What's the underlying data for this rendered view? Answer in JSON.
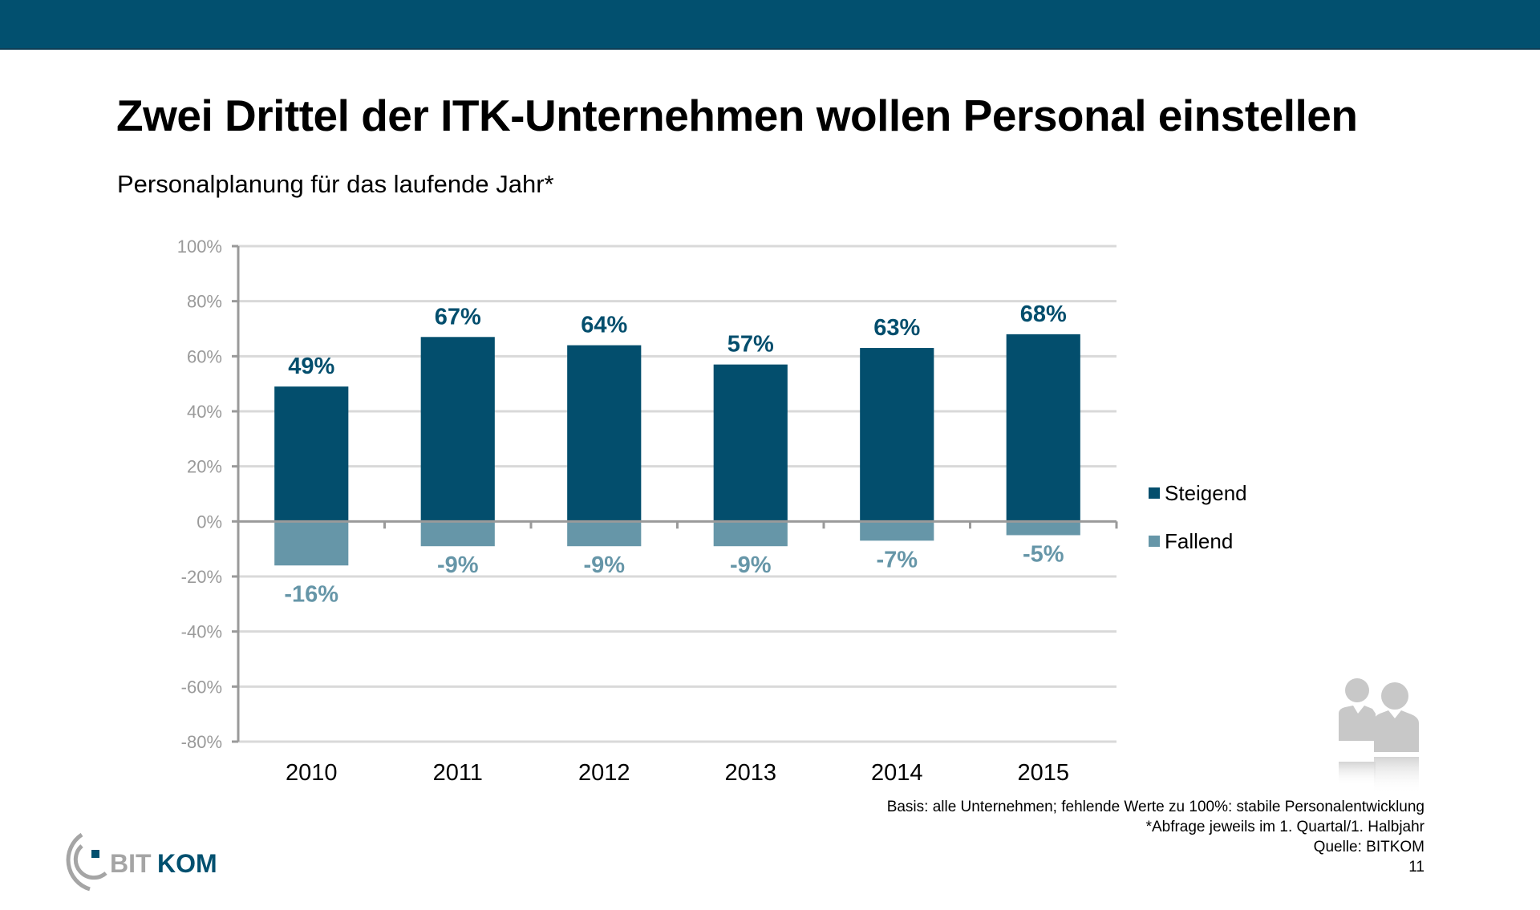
{
  "header": {
    "title": "Zwei Drittel der ITK-Unternehmen wollen Personal einstellen",
    "subtitle": "Personalplanung für das laufende Jahr*"
  },
  "colors": {
    "brand": "#02506f",
    "steigend": "#034e6d",
    "fallend": "#6696a8",
    "grid": "#d9d9d9",
    "axis": "#9a9a9a"
  },
  "chart_data": {
    "type": "bar",
    "title": "Personalplanung für das laufende Jahr*",
    "xlabel": "",
    "ylabel": "",
    "categories": [
      "2010",
      "2011",
      "2012",
      "2013",
      "2014",
      "2015"
    ],
    "series": [
      {
        "name": "Steigend",
        "values": [
          49,
          67,
          64,
          57,
          63,
          68
        ],
        "labels": [
          "49%",
          "67%",
          "64%",
          "57%",
          "63%",
          "68%"
        ]
      },
      {
        "name": "Fallend",
        "values": [
          -16,
          -9,
          -9,
          -9,
          -7,
          -5
        ],
        "labels": [
          "-16%",
          "-9%",
          "-9%",
          "-9%",
          "-7%",
          "-5%"
        ]
      }
    ],
    "ylim": [
      -80,
      100
    ],
    "yticks": [
      100,
      80,
      60,
      40,
      20,
      0,
      -20,
      -40,
      -60,
      -80
    ],
    "ytick_labels": [
      "100%",
      "80%",
      "60%",
      "40%",
      "20%",
      "0%",
      "-20%",
      "-40%",
      "-60%",
      "-80%"
    ],
    "grid": true,
    "legend_position": "right"
  },
  "legend": {
    "items": [
      {
        "label": "Steigend"
      },
      {
        "label": "Fallend"
      }
    ]
  },
  "footnotes": {
    "basis": "Basis: alle Unternehmen; fehlende Werte zu 100%: stabile Personalentwicklung",
    "survey": "*Abfrage jeweils im 1. Quartal/1. Halbjahr",
    "source": "Quelle: BITKOM",
    "page_number": "11"
  },
  "logo": {
    "part1": "BIT",
    "part2": "KOM"
  },
  "icons": {
    "people": "people-icon"
  }
}
